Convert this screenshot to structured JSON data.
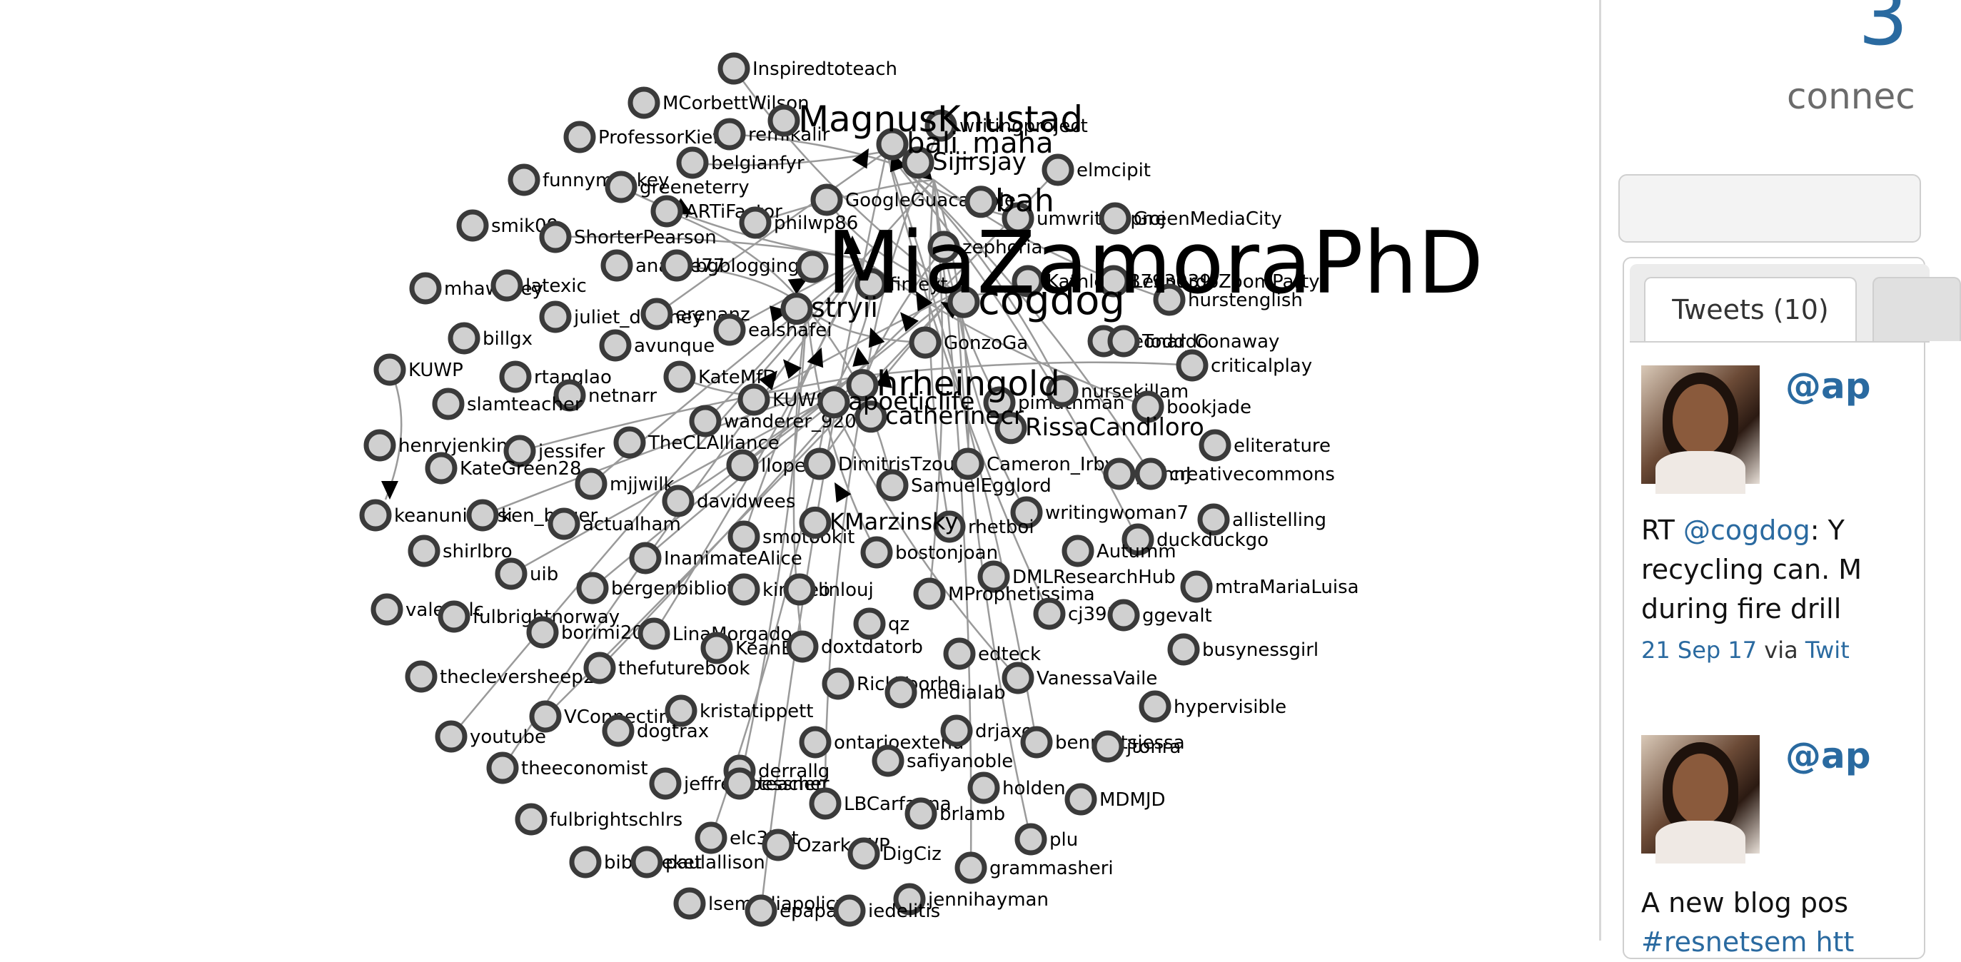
{
  "graph": {
    "node_fill": "#d0d0d0",
    "node_stroke": "#3a3a3a",
    "edge_color": "#9a9a9a",
    "large_labels": [
      "MiaZamoraPhD",
      "MagnusKnustad",
      "cogdog",
      "hrheingold",
      "stryii",
      "bali_maha",
      "bah",
      "Sijirsjay",
      "apoeticlife",
      "catherinecr",
      "RissaCandiloro",
      "KMarzinsky"
    ],
    "nodes": [
      "Inspiredtoteach",
      "MCorbettWilson",
      "ProfessorKiefer",
      "remikalir",
      "belgianfyr",
      "funnymonkey",
      "greeneterry",
      "ARTiFactor",
      "writingproject",
      "elmcipit",
      "GoogleGuacamole",
      "philwp86",
      "umwritingproj",
      "GreenMediaCity",
      "smik09",
      "ShorterPearson",
      "analise77",
      "bgblogging",
      "zephoria",
      "mhawksey",
      "latexic",
      "finleyt",
      "Kathlee28793039",
      "LeonardoZoomParty",
      "hurstenglish",
      "juliet_delaney",
      "erenanz",
      "ealshafei",
      "billgx",
      "avunque",
      "GonzoGa",
      "Leonardo",
      "Todd_Conaway",
      "criticalplay",
      "KUWP",
      "rtanglao",
      "KateMfD",
      "netnarr",
      "slamteacher",
      "KUWSP",
      "pimathman",
      "nursekillam",
      "bookjade",
      "wanderer_920",
      "henryjenkins",
      "jessifer",
      "TheCLAlliance",
      "llopez",
      "DimitrisTzouris",
      "Cameron_Irby",
      "JrehnJ",
      "creativecommons",
      "eliterature",
      "KateGreen28",
      "mjjwilk",
      "SamuelEgglord",
      "keanuniversi",
      "ken_bauer",
      "actualham",
      "davidwees",
      "writingwoman7",
      "allistelling",
      "rhetboi",
      "duckduckgo",
      "smotookit",
      "shirlbro",
      "bostonjoan",
      "Autumm",
      "InanimateAlice",
      "uib",
      "DMLResearchHub",
      "mtraMariaLuisa",
      "bergenbibliote",
      "kimyeo",
      "linlouj",
      "MProphetissima",
      "valerielc",
      "fulbrightnorway",
      "cj391",
      "ggevalt",
      "borimi208",
      "LinaMorgado",
      "qz",
      "KeanEn",
      "doxtdatorb",
      "busynessgirl",
      "thecleversheep24",
      "thefuturebook",
      "edteck",
      "RickVoorhe",
      "VanessaVaile",
      "medialab",
      "hypervisible",
      "VConnecting",
      "kristatippett",
      "dogtrax",
      "youtube",
      "ontarioextend",
      "drjaxon",
      "bennettsjessa",
      "jtonra",
      "safiyanoble",
      "theeconomist",
      "derrallg",
      "jeffreyroessner",
      "teacher",
      "holden",
      "MDMJD",
      "LBCarfagna",
      "brlamb",
      "fulbrightschlrs",
      "elc3bot",
      "OzarksWP",
      "DigCiz",
      "plu",
      "biblioteket",
      "paulallison",
      "grammasheri",
      "jennihayman",
      "lsemediapolicy",
      "epapajan",
      "iedelitis"
    ]
  },
  "sidebar": {
    "brand_digit": "3",
    "brand_text": "connec",
    "tabs": [
      {
        "label": "Tweets (10)"
      }
    ],
    "tweets": [
      {
        "handle": "@ap",
        "text_lines": [
          {
            "prefix": "RT ",
            "link": "@cogdog",
            "suffix": ": Y"
          },
          {
            "prefix": "recycling can. M",
            "link": "",
            "suffix": ""
          },
          {
            "prefix": "during fire drill",
            "link": "",
            "suffix": ""
          }
        ],
        "date": "21 Sep 17",
        "via": "via",
        "source": "Twit"
      },
      {
        "handle": "@ap",
        "text_lines": [
          {
            "prefix": "A new blog pos",
            "link": "",
            "suffix": ""
          },
          {
            "prefix": "",
            "link": "#resnetsem htt",
            "suffix": ""
          }
        ]
      }
    ]
  }
}
